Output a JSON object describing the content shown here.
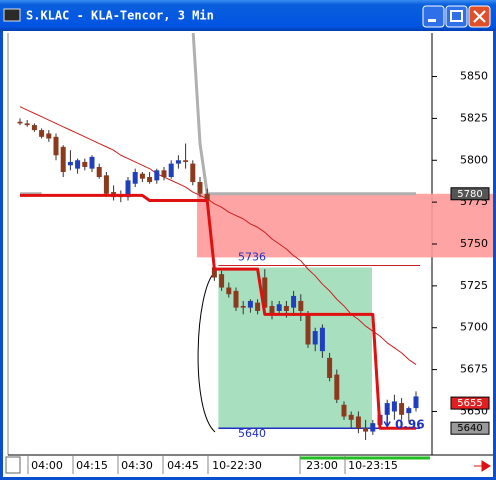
{
  "window": {
    "title": "S.KLAC - KLA-Tencor, 3 Min"
  },
  "chart_data": {
    "type": "candlestick",
    "open": [
      5823,
      5822,
      5821,
      5818,
      5816,
      5814,
      5808,
      5797,
      5795,
      5799,
      5795,
      5796,
      5791,
      5781,
      5779,
      5778,
      5786,
      5792,
      5790,
      5788,
      5794,
      5790,
      5798,
      5800,
      5798,
      5787,
      5780,
      5736,
      5732,
      5724,
      5722,
      5713,
      5712,
      5715,
      5730,
      5713,
      5710,
      5713,
      5712,
      5716,
      5708,
      5690,
      5686,
      5682,
      5672,
      5654,
      5648,
      5647,
      5640,
      5638,
      5642,
      5648,
      5650,
      5655,
      5649,
      5652
    ],
    "high": [
      5825,
      5824,
      5822,
      5819,
      5818,
      5816,
      5809,
      5806,
      5801,
      5801,
      5803,
      5798,
      5793,
      5785,
      5782,
      5790,
      5795,
      5793,
      5793,
      5795,
      5796,
      5800,
      5803,
      5810,
      5800,
      5790,
      5783,
      5738,
      5734,
      5727,
      5724,
      5716,
      5717,
      5717,
      5735,
      5716,
      5716,
      5716,
      5722,
      5720,
      5710,
      5700,
      5702,
      5685,
      5675,
      5656,
      5650,
      5650,
      5645,
      5645,
      5650,
      5657,
      5660,
      5658,
      5653,
      5662
    ],
    "low": [
      5821,
      5820,
      5817,
      5813,
      5811,
      5800,
      5790,
      5794,
      5792,
      5794,
      5793,
      5789,
      5778,
      5776,
      5775,
      5776,
      5784,
      5787,
      5786,
      5786,
      5788,
      5789,
      5795,
      5795,
      5785,
      5778,
      5774,
      5728,
      5722,
      5718,
      5710,
      5708,
      5709,
      5708,
      5710,
      5705,
      5708,
      5706,
      5707,
      5704,
      5688,
      5686,
      5682,
      5668,
      5655,
      5645,
      5640,
      5637,
      5633,
      5636,
      5640,
      5646,
      5645,
      5645,
      5644,
      5650
    ],
    "close": [
      5822,
      5821,
      5818,
      5814,
      5813,
      5803,
      5793,
      5799,
      5800,
      5796,
      5802,
      5790,
      5780,
      5778,
      5778,
      5788,
      5793,
      5789,
      5787,
      5794,
      5790,
      5798,
      5800,
      5799,
      5787,
      5780,
      5776,
      5730,
      5724,
      5720,
      5712,
      5712,
      5716,
      5710,
      5712,
      5708,
      5714,
      5710,
      5719,
      5710,
      5690,
      5698,
      5700,
      5670,
      5657,
      5647,
      5645,
      5640,
      5638,
      5643,
      5648,
      5655,
      5656,
      5648,
      5652,
      5659
    ],
    "up_color": "#1f3fbf",
    "down_color": "#8b3a1e",
    "ma": {
      "color": "#cc2020",
      "values": [
        5832,
        5830,
        5828,
        5826,
        5824,
        5822,
        5820,
        5818,
        5816,
        5814,
        5812,
        5810,
        5808,
        5806,
        5803,
        5801,
        5799,
        5797,
        5795,
        5792,
        5790,
        5788,
        5786,
        5784,
        5781,
        5779,
        5777,
        5774,
        5772,
        5769,
        5767,
        5765,
        5762,
        5760,
        5757,
        5753,
        5750,
        5747,
        5743,
        5740,
        5735,
        5731,
        5726,
        5722,
        5717,
        5713,
        5708,
        5705,
        5701,
        5698,
        5695,
        5691,
        5688,
        5685,
        5681,
        5678
      ]
    },
    "trail": {
      "color": "#b0b0b0",
      "values": [
        5780,
        5780,
        5780,
        5780,
        null,
        null,
        null,
        null,
        null,
        null,
        null,
        null,
        null,
        null,
        null,
        null,
        null,
        null,
        null,
        null,
        null,
        null,
        null,
        null,
        5880,
        5810,
        5780,
        5780,
        5780,
        5780,
        5780,
        5780,
        5780,
        5780,
        5780,
        5780,
        5780,
        5780,
        5780,
        5780,
        5780,
        5780,
        5780,
        5780,
        5780,
        5780,
        5780,
        5780,
        5780,
        5780,
        5780,
        5780,
        5780,
        5780,
        5780,
        5780
      ]
    },
    "stop": {
      "color": "#e01010",
      "values": [
        5779,
        5779,
        5779,
        5779,
        5779,
        5779,
        5779,
        5779,
        5779,
        5779,
        5779,
        5779,
        5779,
        5779,
        5779,
        5779,
        5779,
        5779,
        5776,
        5776,
        5776,
        5776,
        5776,
        5776,
        5776,
        5776,
        5776,
        5735,
        5735,
        5735,
        5735,
        5735,
        5735,
        5735,
        5708,
        5708,
        5708,
        5708,
        5708,
        5708,
        5708,
        5708,
        5708,
        5708,
        5708,
        5708,
        5708,
        5708,
        5708,
        5708,
        5640,
        5640,
        5640,
        5640,
        5640,
        5640
      ]
    },
    "zone": {
      "color": "#ff9a9a",
      "low": 5742,
      "high": 5780
    },
    "target_box": {
      "color": "#a8e0bf",
      "top": 5736,
      "bottom": 5640,
      "top_label": "5736",
      "bottom_label": "5640"
    },
    "ratio_label": "0.96",
    "price_boxes": [
      {
        "value": 5780,
        "color": "#555555"
      },
      {
        "value": 5655,
        "color": "#e02020"
      },
      {
        "value": 5640,
        "color": "#9a9a9a"
      }
    ],
    "ylim": [
      5624,
      5876
    ],
    "yticks": [
      5650,
      5675,
      5700,
      5725,
      5750,
      5775,
      5800,
      5825,
      5850
    ],
    "x_labels": [
      "04:00",
      "04:15",
      "04:30",
      "04:45",
      "10-22:30",
      "23:00",
      "10-23:15"
    ]
  }
}
